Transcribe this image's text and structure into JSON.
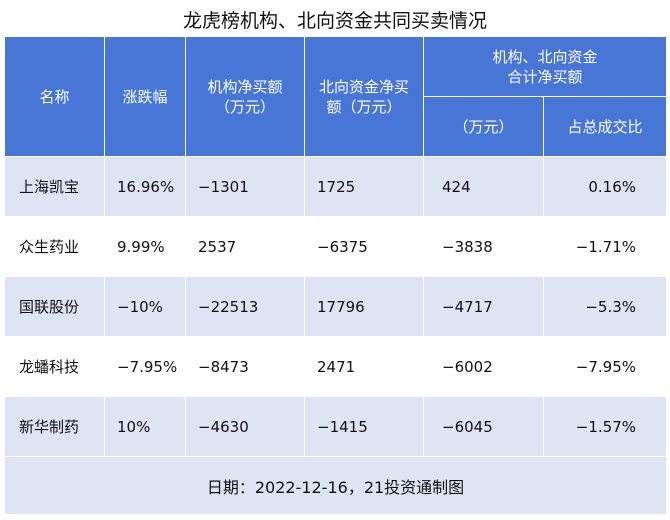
{
  "title": "龙虎榜机构、北向资金共同买卖情况",
  "headers": {
    "name": "名称",
    "change": "涨跌幅",
    "inst": "机构净买额\n（万元）",
    "north": "北向资金净买\n额（万元）",
    "combined_group": "机构、北向资金\n合计净买额",
    "combined_unit": "（万元）",
    "ratio": "占总成交比"
  },
  "rows": [
    {
      "name": "上海凯宝",
      "change": "16.96%",
      "inst": "−1301",
      "north": "1725",
      "combined": "424",
      "ratio": "0.16%"
    },
    {
      "name": "众生药业",
      "change": "9.99%",
      "inst": "2537",
      "north": "−6375",
      "combined": "−3838",
      "ratio": "−1.71%"
    },
    {
      "name": "国联股份",
      "change": "−10%",
      "inst": "−22513",
      "north": "17796",
      "combined": "−4717",
      "ratio": "−5.3%"
    },
    {
      "name": "龙蟠科技",
      "change": "−7.95%",
      "inst": "−8473",
      "north": "2471",
      "combined": "−6002",
      "ratio": "−7.95%"
    },
    {
      "name": "新华制药",
      "change": "10%",
      "inst": "−4630",
      "north": "−1415",
      "combined": "−6045",
      "ratio": "−1.57%"
    }
  ],
  "footer": "日期：2022-12-16，21投资通制图",
  "colors": {
    "header_bg": "#4876d6",
    "stripe_bg": "#dfe4f5"
  }
}
